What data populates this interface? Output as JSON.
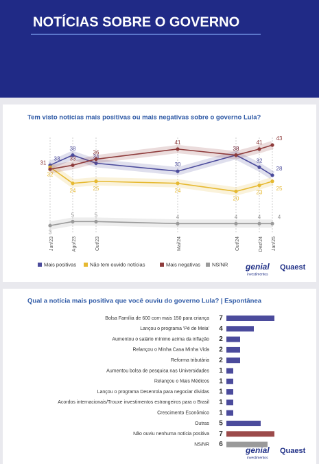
{
  "header": {
    "title": "NOTÍCIAS SOBRE O GOVERNO"
  },
  "logos": {
    "genial": "genial",
    "genial_sub": "investimentos",
    "quaest": "Quaest"
  },
  "chart_data": [
    {
      "type": "line",
      "title": "Tem visto notícias mais positivas ou mais negativas sobre o governo Lula?",
      "categories": [
        "Jun/23",
        "Ago/23",
        "Out/23",
        "Mai/24",
        "Out/24",
        "Dez/24",
        "Jan/25"
      ],
      "series": [
        {
          "name": "Mais positivas",
          "color": "#4b4b9c",
          "values": [
            33,
            38,
            34,
            30,
            38,
            32,
            28
          ]
        },
        {
          "name": "Não tem ouvido notícias",
          "color": "#e6b931",
          "values": [
            32,
            24,
            25,
            24,
            20,
            23,
            25
          ]
        },
        {
          "name": "Mais negativas",
          "color": "#8e3b3b",
          "values": [
            31,
            33,
            36,
            41,
            38,
            41,
            43
          ]
        },
        {
          "name": "NS/NR",
          "color": "#9a9a9a",
          "values": [
            3,
            5,
            5,
            4,
            4,
            4,
            4
          ]
        }
      ]
    },
    {
      "type": "barh",
      "title": "Qual a notícia mais positiva que você ouviu do governo Lula? | Espontânea",
      "categories": [
        "Bolsa Família de 600 com mais 150 para criança",
        "Lançou o programa 'Pé de Meia'",
        "Aumentou o salário mínimo acima da inflação",
        "Relançou o Minha Casa Minha Vida",
        "Reforma tributária",
        "Aumentou bolsa de pesquisa nas Universidades",
        "Relançou o Mais Médicos",
        "Lançou o programa Desenrola para negociar dívidas",
        "Acordos internacionais/Trouxe investimentos estrangeiros para o Brasil",
        "Crescimento Econômico",
        "Outras",
        "Não ouviu nenhuma notícia positiva",
        "NS/NR"
      ],
      "values": [
        7,
        4,
        2,
        2,
        2,
        1,
        1,
        1,
        1,
        1,
        5,
        7,
        6
      ],
      "colors": [
        "#4b4b9c",
        "#4b4b9c",
        "#4b4b9c",
        "#4b4b9c",
        "#4b4b9c",
        "#4b4b9c",
        "#4b4b9c",
        "#4b4b9c",
        "#4b4b9c",
        "#4b4b9c",
        "#4b4b9c",
        "#9c4a4a",
        "#9a9a9a"
      ]
    }
  ]
}
